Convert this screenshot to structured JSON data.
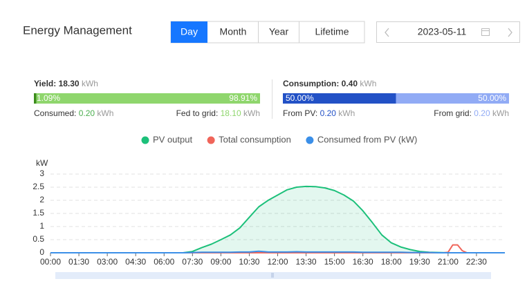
{
  "header": {
    "title": "Energy Management",
    "tabs": [
      "Day",
      "Month",
      "Year",
      "Lifetime"
    ],
    "date": "2023-05-11"
  },
  "yield": {
    "label": "Yield:",
    "value": "18.30",
    "unit": "kWh",
    "bar": {
      "values": [
        1.09,
        98.91
      ],
      "value_labels": [
        "1.09%",
        "98.91%"
      ],
      "colors": [
        "#3c8c1c",
        "#8fd66d"
      ]
    },
    "consumed": {
      "label": "Consumed:",
      "value": "0.20",
      "unit": "kWh"
    },
    "fed": {
      "label": "Fed to grid:",
      "value": "18.10",
      "unit": "kWh"
    }
  },
  "consumption": {
    "label": "Consumption:",
    "value": "0.40",
    "unit": "kWh",
    "bar": {
      "values": [
        50.0,
        50.0
      ],
      "value_labels": [
        "50.00%",
        "50.00%"
      ],
      "colors": [
        "#2251c6",
        "#91abf5"
      ]
    },
    "from_pv": {
      "label": "From PV:",
      "value": "0.20",
      "unit": "kWh"
    },
    "from_grid": {
      "label": "From grid:",
      "value": "0.20",
      "unit": "kWh"
    }
  },
  "chart_data": {
    "type": "line",
    "y_label": "kW",
    "xlim": [
      0,
      24
    ],
    "xticks": [
      {
        "value": 0,
        "label": "00:00"
      },
      {
        "value": 1.5,
        "label": "01:30"
      },
      {
        "value": 3,
        "label": "03:00"
      },
      {
        "value": 4.5,
        "label": "04:30"
      },
      {
        "value": 6,
        "label": "06:00"
      },
      {
        "value": 7.5,
        "label": "07:30"
      },
      {
        "value": 9,
        "label": "09:00"
      },
      {
        "value": 10.5,
        "label": "10:30"
      },
      {
        "value": 12,
        "label": "12:00"
      },
      {
        "value": 13.5,
        "label": "13:30"
      },
      {
        "value": 15,
        "label": "15:00"
      },
      {
        "value": 16.5,
        "label": "16:30"
      },
      {
        "value": 18,
        "label": "18:00"
      },
      {
        "value": 19.5,
        "label": "19:30"
      },
      {
        "value": 21,
        "label": "21:00"
      },
      {
        "value": 22.5,
        "label": "22:30"
      }
    ],
    "ylim": [
      0,
      3
    ],
    "yticks": [
      0,
      0.5,
      1,
      1.5,
      2,
      2.5,
      3
    ],
    "grid": true,
    "series": [
      {
        "name": "PV output",
        "color": "#1cc07a",
        "area": true,
        "x": [
          0,
          0.5,
          1,
          1.5,
          2,
          2.5,
          3,
          3.5,
          4,
          4.5,
          5,
          5.5,
          6,
          6.5,
          7,
          7.5,
          8,
          8.5,
          9,
          9.5,
          10,
          10.5,
          11,
          11.5,
          12,
          12.5,
          13,
          13.5,
          14,
          14.5,
          15,
          15.5,
          16,
          16.5,
          17,
          17.5,
          18,
          18.5,
          19,
          19.5,
          20,
          20.5,
          21,
          21.5,
          22,
          22.5,
          23,
          23.5,
          24
        ],
        "values": [
          0,
          0,
          0,
          0,
          0,
          0,
          0,
          0,
          0,
          0,
          0,
          0,
          0,
          0,
          0,
          0.05,
          0.2,
          0.33,
          0.5,
          0.68,
          0.95,
          1.35,
          1.75,
          2.0,
          2.2,
          2.4,
          2.5,
          2.53,
          2.52,
          2.47,
          2.37,
          2.2,
          1.97,
          1.6,
          1.15,
          0.68,
          0.38,
          0.22,
          0.12,
          0.05,
          0.02,
          0.01,
          0,
          0,
          0,
          0,
          0,
          0,
          0
        ]
      },
      {
        "name": "Total consumption",
        "color": "#f0655a",
        "x": [
          0,
          20.75,
          21,
          21.25,
          21.5,
          21.75,
          22,
          24
        ],
        "values": [
          0,
          0,
          0.02,
          0.3,
          0.3,
          0.08,
          0,
          0
        ]
      },
      {
        "name": "Consumed from PV (kW)",
        "color": "#3b8fe8",
        "x": [
          0,
          0.5,
          1,
          1.5,
          2,
          2.5,
          3,
          3.5,
          4,
          4.5,
          5,
          5.5,
          6,
          6.5,
          7,
          7.5,
          8,
          8.5,
          9,
          9.5,
          10,
          10.5,
          11,
          11.5,
          12,
          12.5,
          13,
          13.5,
          14,
          14.5,
          15,
          15.5,
          16,
          16.5,
          17,
          17.5,
          18,
          18.5,
          19,
          19.5,
          20,
          20.5,
          21,
          21.5,
          22,
          22.5,
          23,
          23.5,
          24
        ],
        "values": [
          0,
          0,
          0,
          0,
          0,
          0,
          0,
          0,
          0,
          0,
          0,
          0,
          0,
          0,
          0,
          0.01,
          0.02,
          0.02,
          0.02,
          0.02,
          0.03,
          0.03,
          0.06,
          0.03,
          0.03,
          0.03,
          0.04,
          0.03,
          0.03,
          0.03,
          0.03,
          0.03,
          0.03,
          0.02,
          0.02,
          0.02,
          0.02,
          0.02,
          0.01,
          0.01,
          0.01,
          0,
          0,
          0,
          0,
          0,
          0,
          0,
          0
        ]
      }
    ]
  }
}
